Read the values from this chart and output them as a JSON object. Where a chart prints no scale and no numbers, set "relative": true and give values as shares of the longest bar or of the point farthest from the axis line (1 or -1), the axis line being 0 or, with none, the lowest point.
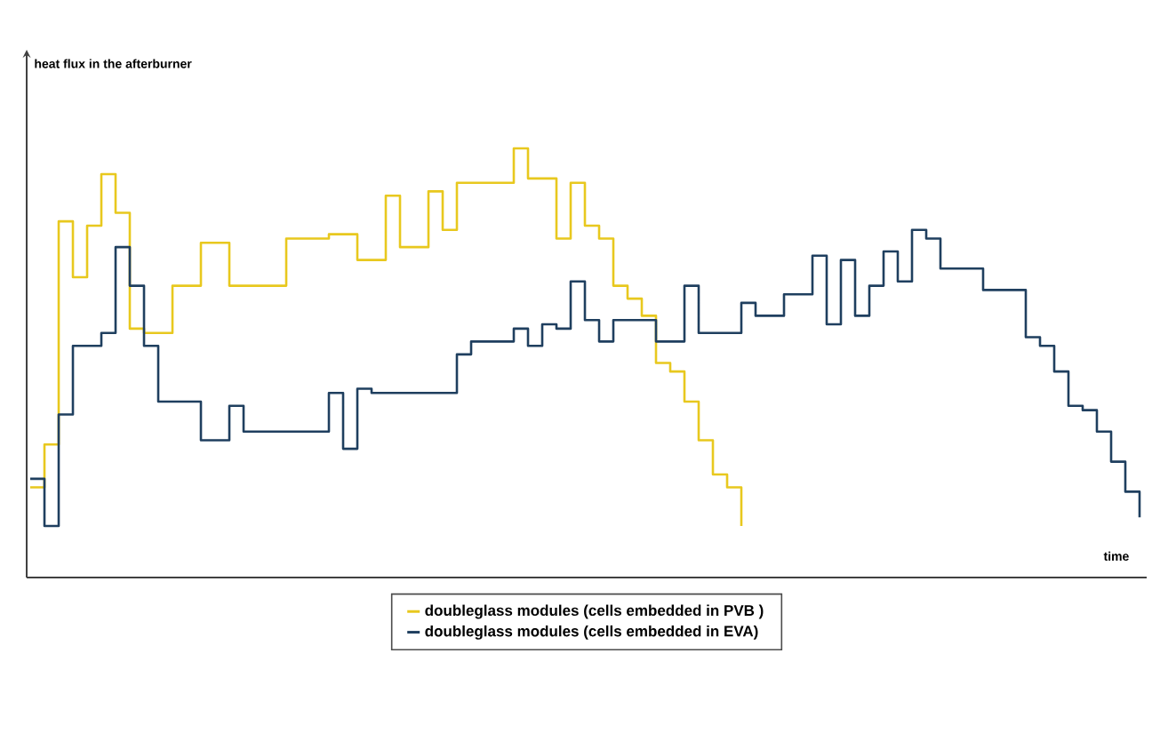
{
  "chart_data": {
    "type": "step",
    "relative": true,
    "annotations": [
      "heat flux in the afterburner"
    ],
    "xlabel": "time",
    "legend": "bottom",
    "categories": [
      null,
      null,
      null,
      null,
      null,
      null,
      null,
      null,
      null,
      null,
      null,
      null,
      null,
      null,
      null,
      null,
      null,
      null,
      null,
      null,
      null,
      null,
      null,
      null,
      null,
      null,
      null,
      null,
      null,
      null,
      null,
      null,
      null,
      null,
      null,
      null,
      null,
      null,
      null,
      null,
      null,
      null,
      null,
      null,
      null,
      null,
      null,
      null,
      null,
      null,
      null,
      null,
      null,
      null,
      null,
      null,
      null,
      null,
      null,
      null,
      null,
      null,
      null,
      null,
      null,
      null,
      null,
      null,
      null,
      null,
      null,
      null,
      null,
      null,
      null,
      null,
      null,
      null,
      null
    ],
    "series": [
      {
        "name": "doubleglass modules (cells embedded in PVB )",
        "color": "#e8c81e",
        "values": [
          0.21,
          0.31,
          0.83,
          0.7,
          0.82,
          0.94,
          0.85,
          0.58,
          0.57,
          0.57,
          0.68,
          0.68,
          0.78,
          0.78,
          0.68,
          0.68,
          0.68,
          0.68,
          0.79,
          0.79,
          0.79,
          0.8,
          0.8,
          0.74,
          0.74,
          0.89,
          0.77,
          0.77,
          0.9,
          0.81,
          0.92,
          0.92,
          0.92,
          0.92,
          1.0,
          0.93,
          0.93,
          0.79,
          0.92,
          0.82,
          0.79,
          0.68,
          0.65,
          0.61,
          0.5,
          0.48,
          0.41,
          0.32,
          0.24,
          0.21,
          0.12,
          null,
          null,
          null,
          null,
          null,
          null,
          null,
          null,
          null,
          null,
          null,
          null,
          null,
          null,
          null,
          null,
          null,
          null,
          null,
          null,
          null,
          null,
          null,
          null,
          null,
          null,
          null,
          null
        ]
      },
      {
        "name": "doubleglass modules (cells embedded in EVA)",
        "color": "#1f3f5f",
        "values": [
          0.23,
          0.12,
          0.38,
          0.54,
          0.54,
          0.57,
          0.77,
          0.68,
          0.54,
          0.41,
          0.41,
          0.41,
          0.32,
          0.32,
          0.4,
          0.34,
          0.34,
          0.34,
          0.34,
          0.34,
          0.34,
          0.43,
          0.3,
          0.44,
          0.43,
          0.43,
          0.43,
          0.43,
          0.43,
          0.43,
          0.52,
          0.55,
          0.55,
          0.55,
          0.58,
          0.54,
          0.59,
          0.58,
          0.69,
          0.6,
          0.55,
          0.6,
          0.6,
          0.6,
          0.55,
          0.55,
          0.68,
          0.57,
          0.57,
          0.57,
          0.64,
          0.61,
          0.61,
          0.66,
          0.66,
          0.75,
          0.59,
          0.74,
          0.61,
          0.68,
          0.76,
          0.69,
          0.81,
          0.79,
          0.72,
          0.72,
          0.72,
          0.67,
          0.67,
          0.67,
          0.56,
          0.54,
          0.48,
          0.4,
          0.39,
          0.34,
          0.27,
          0.2,
          0.14
        ]
      }
    ]
  }
}
